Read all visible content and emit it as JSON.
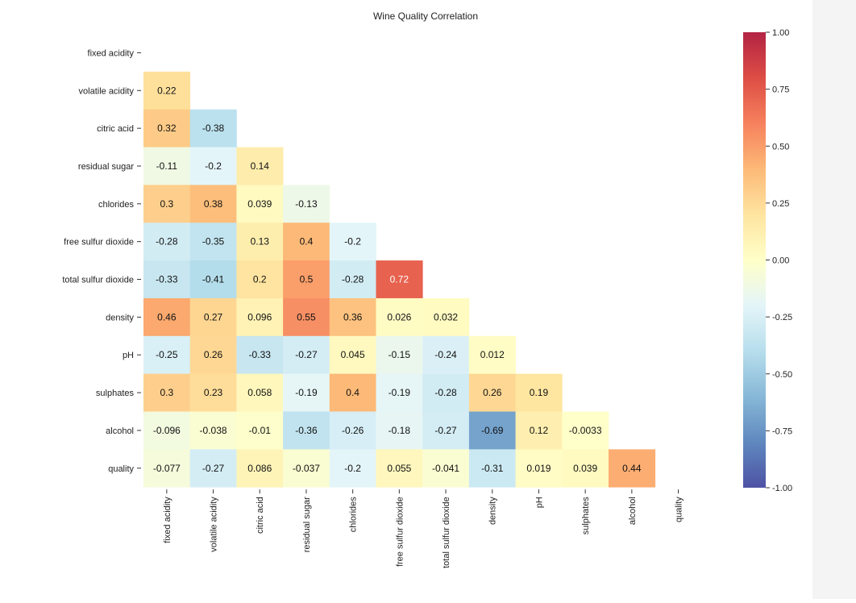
{
  "chart_data": {
    "type": "heatmap",
    "title": "Wine Quality Correlation",
    "variables": [
      "fixed acidity",
      "volatile acidity",
      "citric acid",
      "residual sugar",
      "chlorides",
      "free sulfur dioxide",
      "total sulfur dioxide",
      "density",
      "pH",
      "sulphates",
      "alcohol",
      "quality"
    ],
    "lower_triangle": [
      [],
      [
        0.22
      ],
      [
        0.32,
        -0.38
      ],
      [
        -0.11,
        -0.2,
        0.14
      ],
      [
        0.3,
        0.38,
        0.039,
        -0.13
      ],
      [
        -0.28,
        -0.35,
        0.13,
        0.4,
        -0.2
      ],
      [
        -0.33,
        -0.41,
        0.2,
        0.5,
        -0.28,
        0.72
      ],
      [
        0.46,
        0.27,
        0.096,
        0.55,
        0.36,
        0.026,
        0.032
      ],
      [
        -0.25,
        0.26,
        -0.33,
        -0.27,
        0.045,
        -0.15,
        -0.24,
        0.012
      ],
      [
        0.3,
        0.23,
        0.058,
        -0.19,
        0.4,
        -0.19,
        -0.28,
        0.26,
        0.19
      ],
      [
        -0.096,
        -0.038,
        -0.01,
        -0.36,
        -0.26,
        -0.18,
        -0.27,
        -0.69,
        0.12,
        -0.0033
      ],
      [
        -0.077,
        -0.27,
        0.086,
        -0.037,
        -0.2,
        0.055,
        -0.041,
        -0.31,
        0.019,
        0.039,
        0.44
      ]
    ],
    "value_range": [
      -1.0,
      1.0
    ],
    "colorbar_ticks": [
      "1.00",
      "0.75",
      "0.50",
      "0.25",
      "0.00",
      "-0.25",
      "-0.50",
      "-0.75",
      "-1.00"
    ],
    "colormap": {
      "name": "RdYlBu_r",
      "stops": [
        "#313695",
        "#4575b4",
        "#74add1",
        "#abd9e9",
        "#e0f3f8",
        "#ffffbf",
        "#fee090",
        "#fdae61",
        "#f46d43",
        "#d73027",
        "#a50026"
      ],
      "brightness": 0.86
    }
  }
}
